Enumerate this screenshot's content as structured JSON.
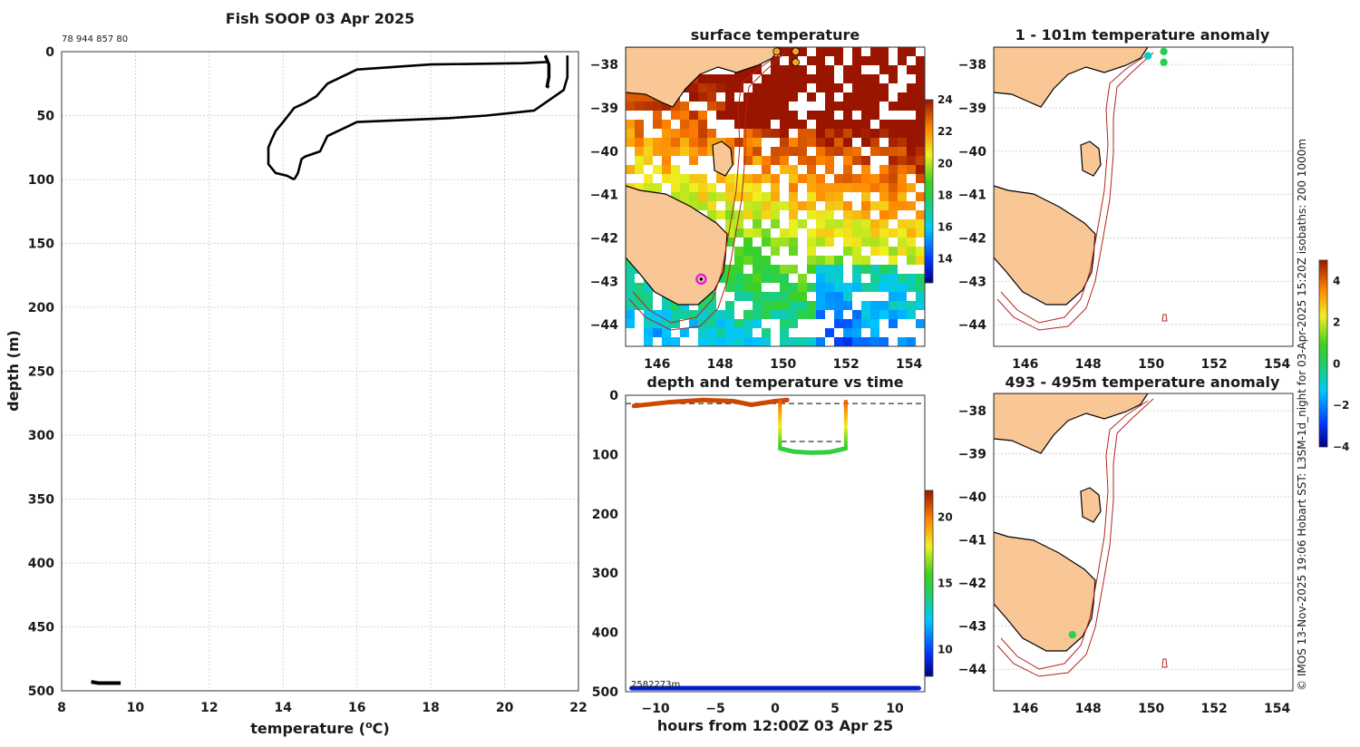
{
  "credit": "© IMOS 13-Nov-2025 19:06 Hobart SST: L3SM-1d_night for 03-Apr-2025 15:20Z isobaths: 200  1000m",
  "colors": {
    "land": "#f9c796",
    "isobath": "#b3261e",
    "profile": "#000000",
    "marker_magenta": "#e020e0",
    "marker_orange": "#f5a623",
    "marker_green": "#22cc55"
  },
  "chart_data": [
    {
      "id": "profile",
      "type": "line",
      "title": "Fish SOOP 03 Apr 2025",
      "annotation": "78 944 857 80",
      "xlabel": "temperature (°C)",
      "xlabel_parts": [
        "temperature (",
        "o",
        "C)"
      ],
      "ylabel": "depth (m)",
      "xlim": [
        8,
        22
      ],
      "ylim": [
        0,
        500
      ],
      "xticks": [
        8,
        10,
        12,
        14,
        16,
        18,
        20,
        22
      ],
      "yticks": [
        0,
        50,
        100,
        150,
        200,
        250,
        300,
        350,
        400,
        450,
        500
      ],
      "grid": true,
      "series": [
        {
          "name": "descent",
          "x": [
            21.2,
            20.5,
            18.0,
            16.0,
            15.2,
            14.9,
            14.6,
            14.3,
            14.0,
            13.8,
            13.7,
            13.6,
            13.6,
            13.8,
            14.1,
            14.3
          ],
          "y": [
            8,
            9,
            10,
            14,
            25,
            35,
            40,
            44,
            55,
            62,
            68,
            75,
            88,
            95,
            97,
            100
          ]
        },
        {
          "name": "ascent",
          "x": [
            14.3,
            14.4,
            14.5,
            14.6,
            15.0,
            15.2,
            16.0,
            18.5,
            19.5,
            20.8,
            21.6,
            21.7,
            21.7
          ],
          "y": [
            100,
            95,
            84,
            82,
            78,
            66,
            55,
            52,
            50,
            46,
            30,
            20,
            3
          ]
        },
        {
          "name": "surface-cluster",
          "x": [
            21.1,
            21.2,
            21.2,
            21.15,
            21.2
          ],
          "y": [
            3,
            10,
            20,
            27,
            28
          ]
        },
        {
          "name": "deep-cluster",
          "x": [
            8.8,
            9.0,
            9.3,
            9.6
          ],
          "y": [
            493,
            494,
            494,
            494
          ]
        }
      ]
    },
    {
      "id": "sst",
      "type": "heatmap",
      "title": "surface temperature",
      "xlim": [
        145,
        154.5
      ],
      "ylim": [
        -44.5,
        -37.6
      ],
      "xticks": [
        146,
        148,
        150,
        152,
        154
      ],
      "yticks": [
        -38,
        -39,
        -40,
        -41,
        -42,
        -43,
        -44
      ],
      "colorbar": {
        "min": 12.5,
        "max": 24,
        "ticks": [
          14,
          16,
          18,
          20,
          22,
          24
        ]
      },
      "markers": [
        {
          "lon": 149.8,
          "lat": -37.7,
          "color": "#f5a623"
        },
        {
          "lon": 150.4,
          "lat": -37.7,
          "color": "#f5a623"
        },
        {
          "lon": 150.4,
          "lat": -37.95,
          "color": "#f5a623"
        },
        {
          "lon": 147.4,
          "lat": -42.95,
          "color": "#e020e0"
        }
      ]
    },
    {
      "id": "depth-time",
      "type": "scatter",
      "title": "depth and temperature vs time",
      "xlabel": "hours from 12:00Z 03 Apr 25",
      "xlim": [
        -12.5,
        12.5
      ],
      "ylim": [
        0,
        500
      ],
      "xticks": [
        -10,
        -5,
        0,
        5,
        10
      ],
      "yticks": [
        0,
        100,
        200,
        300,
        400,
        500
      ],
      "annotation": "2582273m",
      "colorbar": {
        "min": 8,
        "max": 22,
        "ticks": [
          10,
          15,
          20
        ]
      },
      "reference_depths": [
        14,
        78
      ],
      "series": [
        {
          "name": "surface",
          "x": [
            -11.8,
            -9,
            -6,
            -3.5,
            -2,
            0,
            1
          ],
          "y": [
            18,
            12,
            8,
            10,
            16,
            10,
            8
          ],
          "temp": 21
        },
        {
          "name": "tow",
          "x": [
            0.5,
            1.5,
            3,
            4.5,
            5.8
          ],
          "y": [
            90,
            95,
            97,
            96,
            90
          ],
          "temp": 15
        },
        {
          "name": "bottom",
          "x": [
            -12,
            12
          ],
          "y": [
            494,
            494
          ],
          "temp": 9
        }
      ]
    },
    {
      "id": "anom-surface",
      "type": "scatter",
      "title": "1 - 101m temperature anomaly",
      "xlim": [
        145,
        154.5
      ],
      "ylim": [
        -44.5,
        -37.6
      ],
      "xticks": [
        146,
        148,
        150,
        152,
        154
      ],
      "yticks": [
        -38,
        -39,
        -40,
        -41,
        -42,
        -43,
        -44
      ],
      "points": [
        {
          "lon": 149.9,
          "lat": -37.8,
          "anomaly": -0.8
        },
        {
          "lon": 150.4,
          "lat": -37.7,
          "anomaly": 0.2
        },
        {
          "lon": 150.4,
          "lat": -37.95,
          "anomaly": 0.3
        }
      ]
    },
    {
      "id": "anom-deep",
      "type": "scatter",
      "title": "493 - 495m temperature anomaly",
      "xlim": [
        145,
        154.5
      ],
      "ylim": [
        -44.5,
        -37.6
      ],
      "xticks": [
        146,
        148,
        150,
        152,
        154
      ],
      "yticks": [
        -38,
        -39,
        -40,
        -41,
        -42,
        -43,
        -44
      ],
      "colorbar": {
        "min": -4,
        "max": 5,
        "ticks": [
          -4,
          -2,
          0,
          2,
          4
        ]
      },
      "points": [
        {
          "lon": 147.5,
          "lat": -43.2,
          "anomaly": 0.4
        }
      ]
    }
  ]
}
